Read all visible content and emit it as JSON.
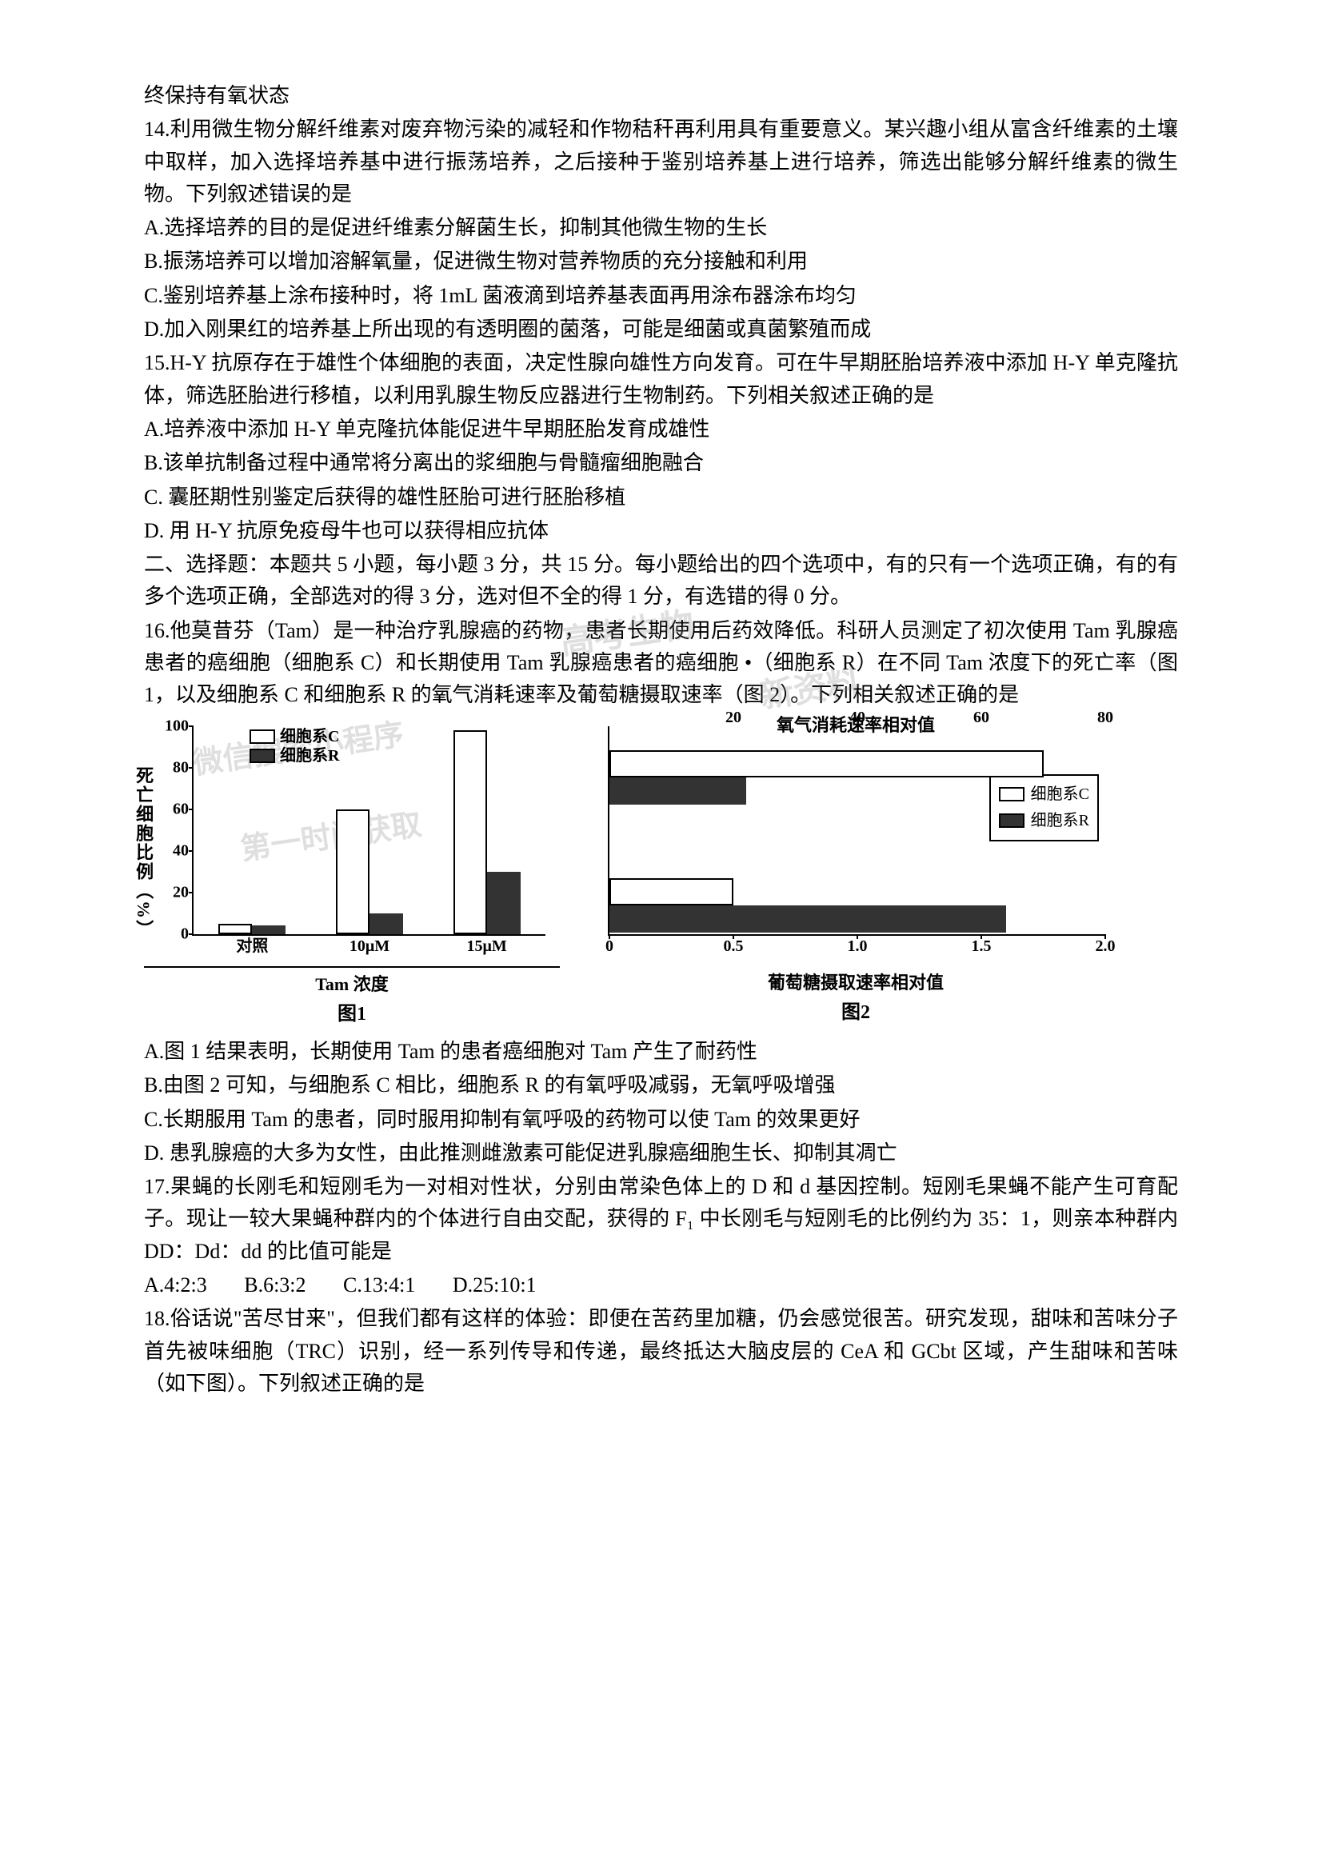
{
  "p_top": "终保持有氧状态",
  "q14": {
    "stem1": "14.利用微生物分解纤维素对废弃物污染的减轻和作物秸秆再利用具有重要意义。某兴趣小组从富含纤维素的土壤中取样，加入选择培养基中进行振荡培养，之后接种于鉴别培养基上进行培养，筛选出能够分解纤维素的微生物。下列叙述错误的是",
    "A": "A.选择培养的目的是促进纤维素分解菌生长，抑制其他微生物的生长",
    "B": "B.振荡培养可以增加溶解氧量，促进微生物对营养物质的充分接触和利用",
    "C": "C.鉴别培养基上涂布接种时，将 1mL 菌液滴到培养基表面再用涂布器涂布均匀",
    "D": "D.加入刚果红的培养基上所出现的有透明圈的菌落，可能是细菌或真菌繁殖而成"
  },
  "q15": {
    "stem": "15.H-Y 抗原存在于雄性个体细胞的表面，决定性腺向雄性方向发育。可在牛早期胚胎培养液中添加 H-Y 单克隆抗体，筛选胚胎进行移植，以利用乳腺生物反应器进行生物制药。下列相关叙述正确的是",
    "A": "A.培养液中添加 H-Y 单克隆抗体能促进牛早期胚胎发育成雄性",
    "B": "B.该单抗制备过程中通常将分离出的浆细胞与骨髓瘤细胞融合",
    "C": "C. 囊胚期性别鉴定后获得的雄性胚胎可进行胚胎移植",
    "D": "D. 用 H-Y 抗原免疫母牛也可以获得相应抗体"
  },
  "section2": "二、选择题：本题共 5 小题，每小题 3 分，共 15 分。每小题给出的四个选项中，有的只有一个选项正确，有的有多个选项正确，全部选对的得 3 分，选对但不全的得 1 分，有选错的得 0 分。",
  "q16": {
    "stem": "16.他莫昔芬（Tam）是一种治疗乳腺癌的药物，患者长期使用后药效降低。科研人员测定了初次使用 Tam 乳腺癌患者的癌细胞（细胞系 C）和长期使用 Tam 乳腺癌患者的癌细胞 •（细胞系 R）在不同 Tam 浓度下的死亡率（图 1，以及细胞系 C 和细胞系 R 的氧气消耗速率及葡萄糖摄取速率（图 2）。下列相关叙述正确的是",
    "A": "A.图 1 结果表明，长期使用 Tam 的患者癌细胞对 Tam 产生了耐药性",
    "B": "B.由图 2 可知，与细胞系 C 相比，细胞系 R 的有氧呼吸减弱，无氧呼吸增强",
    "C": "C.长期服用 Tam 的患者，同时服用抑制有氧呼吸的药物可以使 Tam 的效果更好",
    "D": "D. 患乳腺癌的大多为女性，由此推测雌激素可能促进乳腺癌细胞生长、抑制其凋亡"
  },
  "q17": {
    "stem": "17.果蝇的长刚毛和短刚毛为一对相对性状，分别由常染色体上的 D 和 d 基因控制。短刚毛果蝇不能产生可育配子。现让一较大果蝇种群内的个体进行自由交配，获得的 F₁ 中长刚毛与短刚毛的比例约为 35：1，则亲本种群内 DD：Dd：dd 的比值可能是",
    "A": "A.4:2:3",
    "B": "B.6:3:2",
    "C": "C.13:4:1",
    "D": "D.25:10:1"
  },
  "q18": {
    "stem": "18.俗话说\"苦尽甘来\"，但我们都有这样的体验：即便在苦药里加糖，仍会感觉很苦。研究发现，甜味和苦味分子首先被味细胞（TRC）识别，经一系列传导和传递，最终抵达大脑皮层的 CeA 和 GCbt 区域，产生甜味和苦味（如下图）。下列叙述正确的是"
  },
  "chart1": {
    "y_label": "死亡细胞比例（%）",
    "legend_c": "细胞系C",
    "legend_r": "细胞系R",
    "categories": [
      "对照",
      "10μM",
      "15μM"
    ],
    "values_c": [
      5,
      60,
      98
    ],
    "values_r": [
      4,
      10,
      30
    ],
    "y_ticks": [
      0,
      20,
      40,
      60,
      80,
      100
    ],
    "ymax": 100,
    "x_label": "Tam 浓度",
    "caption": "图1",
    "bar_color_c": "#ffffff",
    "bar_color_r": "#333333",
    "border_color": "#000000"
  },
  "chart2": {
    "top_label": "氧气消耗速率相对值",
    "top_ticks": [
      20,
      40,
      60,
      80
    ],
    "legend_c": "细胞系C",
    "legend_r": "细胞系R",
    "bottom_ticks": [
      0,
      0.5,
      "1.0",
      1.5,
      "2.0"
    ],
    "x_label": "葡萄糖摄取速率相对值",
    "caption": "图2",
    "glucose_c": 0.5,
    "glucose_r": 1.6,
    "oxygen_c": 70,
    "oxygen_r": 22,
    "xmax": 2.0,
    "top_max": 80
  },
  "watermarks": {
    "w1": "微信搜索小程序",
    "w2": "第一时间获取",
    "w3": "高考生物",
    "w4": "新资料"
  }
}
